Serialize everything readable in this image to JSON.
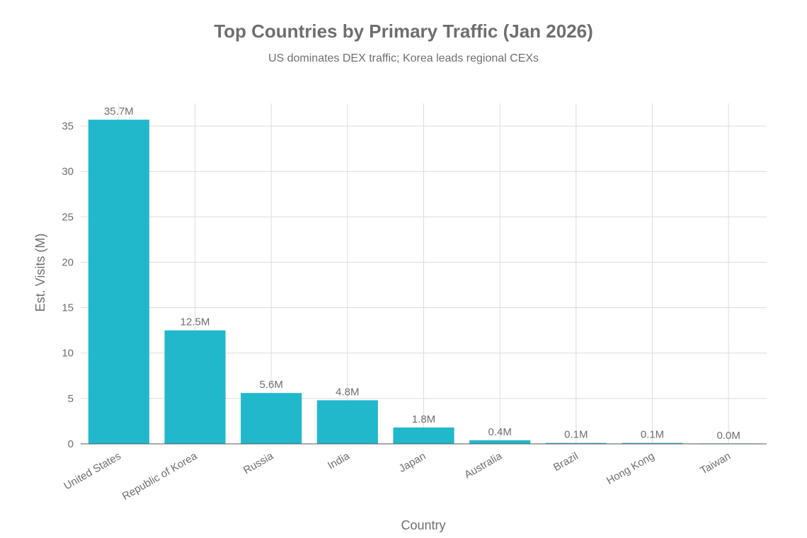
{
  "chart_data": {
    "type": "bar",
    "title": "Top Countries by Primary Traffic (Jan 2026)",
    "subtitle": "US dominates DEX traffic; Korea leads regional CEXs",
    "xlabel": "Country",
    "ylabel": "Est. Visits (M)",
    "categories": [
      "United States",
      "Republic of Korea",
      "Russia",
      "India",
      "Japan",
      "Australia",
      "Brazil",
      "Hong Kong",
      "Taiwan"
    ],
    "values": [
      35.7,
      12.5,
      5.6,
      4.8,
      1.8,
      0.4,
      0.1,
      0.1,
      0.0
    ],
    "data_labels": [
      "35.7M",
      "12.5M",
      "5.6M",
      "4.8M",
      "1.8M",
      "0.4M",
      "0.1M",
      "0.1M",
      "0.0M"
    ],
    "ylim": [
      0,
      37.5
    ],
    "yticks": [
      0,
      5,
      10,
      15,
      20,
      25,
      30,
      35
    ],
    "grid": true,
    "bar_color": "#21b8cc"
  }
}
